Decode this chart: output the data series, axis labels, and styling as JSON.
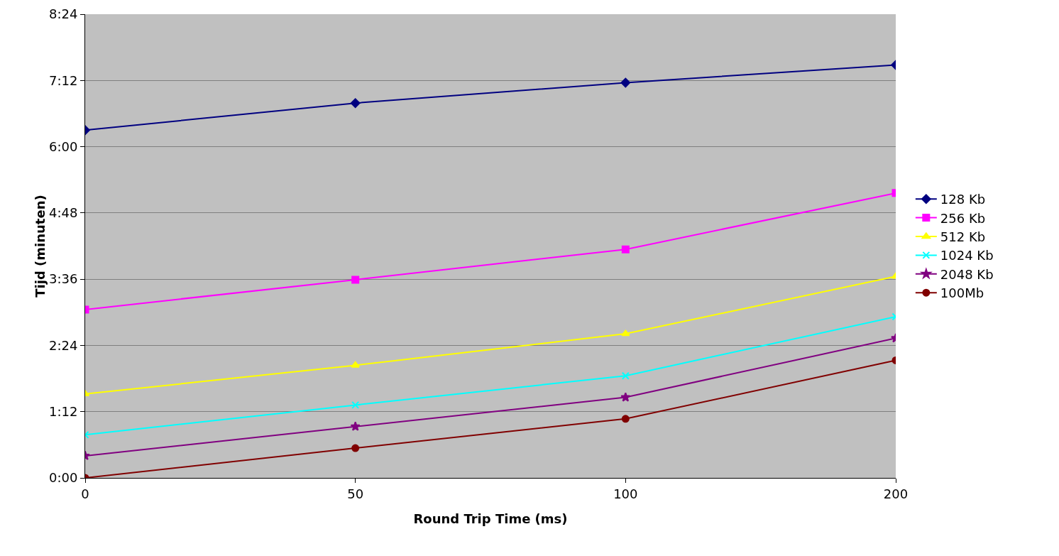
{
  "chart_data": {
    "type": "line",
    "xlabel": "Round Trip Time (ms)",
    "ylabel": "Tijd (minuten)",
    "categories": [
      "0",
      "50",
      "100",
      "200"
    ],
    "series": [
      {
        "name": "128 Kb",
        "color": "#000080",
        "marker": "diamond",
        "values": [
          6.3,
          6.79,
          7.16,
          7.48
        ]
      },
      {
        "name": "256 Kb",
        "color": "#ff00ff",
        "marker": "square",
        "values": [
          3.05,
          3.59,
          4.14,
          5.16
        ]
      },
      {
        "name": "512 Kb",
        "color": "#ffff00",
        "marker": "triangle",
        "values": [
          1.52,
          2.04,
          2.61,
          3.65
        ]
      },
      {
        "name": "1024 Kb",
        "color": "#00ffff",
        "marker": "cross",
        "values": [
          0.78,
          1.32,
          1.85,
          2.92
        ]
      },
      {
        "name": "2048 Kb",
        "color": "#800080",
        "marker": "star",
        "values": [
          0.4,
          0.93,
          1.46,
          2.53
        ]
      },
      {
        "name": "100Mb",
        "color": "#800000",
        "marker": "circle",
        "values": [
          0,
          0.54,
          1.07,
          2.13
        ]
      }
    ],
    "ylim": [
      0,
      8.4
    ],
    "yticks": [
      {
        "value": 0,
        "label": "0:00"
      },
      {
        "value": 1.2,
        "label": "1:12"
      },
      {
        "value": 2.4,
        "label": "2:24"
      },
      {
        "value": 3.6,
        "label": "3:36"
      },
      {
        "value": 4.8,
        "label": "4:48"
      },
      {
        "value": 6,
        "label": "6:00"
      },
      {
        "value": 7.2,
        "label": "7:12"
      },
      {
        "value": 8.4,
        "label": "8:24"
      }
    ],
    "grid": "y",
    "legend": "right",
    "line_style": "solid"
  }
}
